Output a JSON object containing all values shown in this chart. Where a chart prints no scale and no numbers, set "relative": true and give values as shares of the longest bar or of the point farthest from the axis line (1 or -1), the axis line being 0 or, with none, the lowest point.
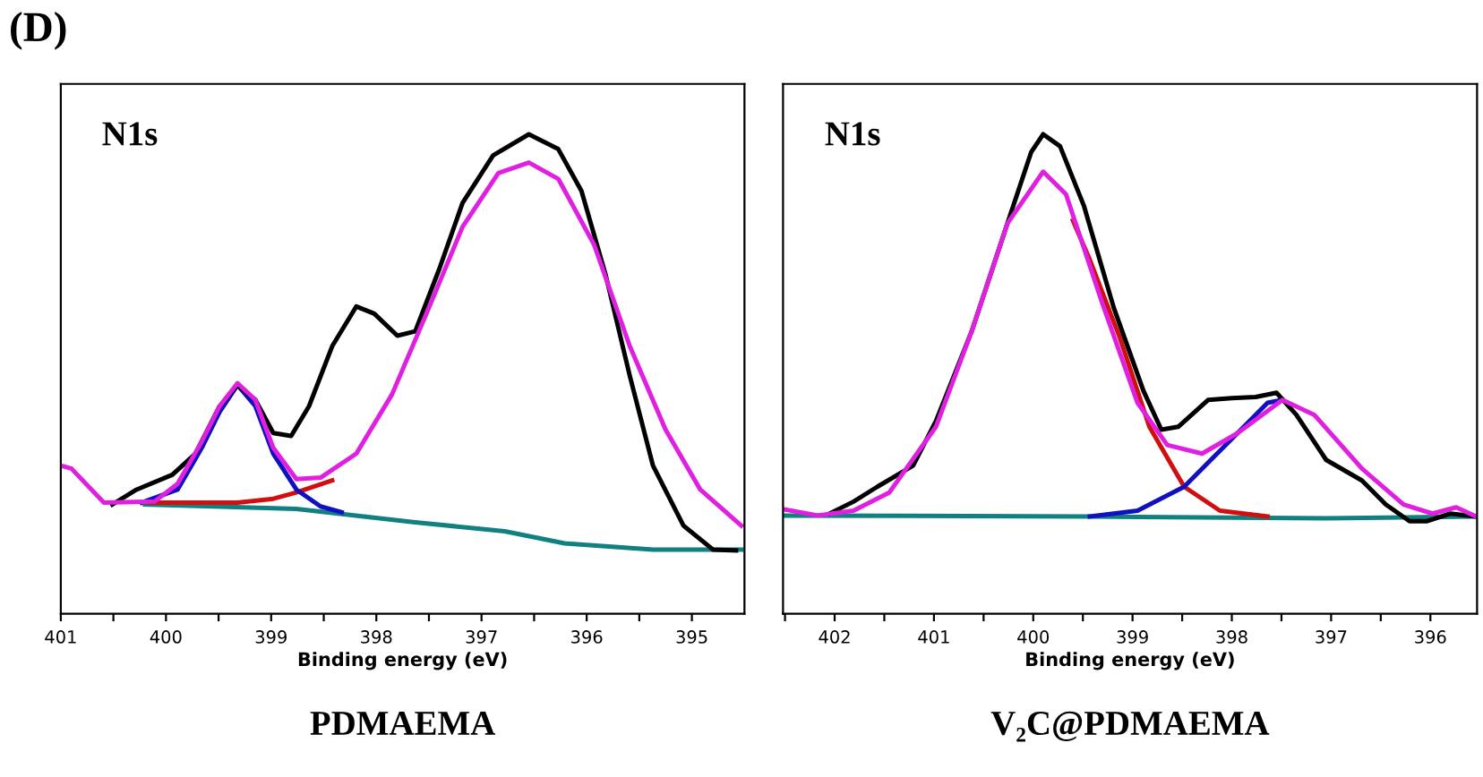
{
  "chart_data": [
    {
      "type": "line",
      "title": "PDMAEMA",
      "xlabel": "Binding energy (eV)",
      "relative": true,
      "annotations": [
        "(D)",
        "N1s"
      ],
      "grid": false,
      "legend": false,
      "marker": "none",
      "line_style": "solid",
      "tick_labels": "x",
      "xlim": [
        401,
        394.5
      ],
      "xticks": [
        401,
        {
          "value": 400.5,
          "label": null
        },
        400,
        {
          "value": 399.5,
          "label": null
        },
        399,
        {
          "value": 398.5,
          "label": null
        },
        398,
        {
          "value": 397.5,
          "label": null
        },
        397,
        {
          "value": 396.5,
          "label": null
        },
        396,
        {
          "value": 395.5,
          "label": null
        },
        395
      ],
      "series": [
        {
          "color": "#108080",
          "x": [
            400.2,
            398.76,
            397.63,
            396.78,
            396.21,
            395.37,
            394.53
          ],
          "values": [
            0.228,
            0.219,
            0.191,
            0.172,
            0.147,
            0.134,
            0.134
          ]
        },
        {
          "color": "#d01010",
          "x": [
            400.17,
            399.32,
            398.98,
            398.76,
            398.42
          ],
          "values": [
            0.232,
            0.232,
            0.24,
            0.253,
            0.278
          ]
        },
        {
          "color": "#1010c0",
          "x": [
            400.23,
            399.89,
            399.66,
            399.49,
            399.32,
            399.15,
            398.98,
            398.76,
            398.53,
            398.33
          ],
          "values": [
            0.232,
            0.259,
            0.346,
            0.421,
            0.477,
            0.433,
            0.334,
            0.259,
            0.224,
            0.212
          ]
        },
        {
          "color": "#000000",
          "x": [
            400.51,
            400.28,
            399.94,
            399.72,
            399.49,
            399.32,
            399.15,
            398.98,
            398.81,
            398.64,
            398.42,
            398.19,
            398.02,
            397.8,
            397.63,
            397.4,
            397.18,
            396.89,
            396.55,
            396.27,
            396.05,
            395.82,
            395.59,
            395.37,
            395.08,
            394.8,
            394.58
          ],
          "values": [
            0.228,
            0.259,
            0.29,
            0.334,
            0.433,
            0.477,
            0.446,
            0.377,
            0.371,
            0.433,
            0.558,
            0.641,
            0.626,
            0.58,
            0.589,
            0.72,
            0.857,
            0.956,
            1.0,
            0.969,
            0.882,
            0.707,
            0.496,
            0.309,
            0.184,
            0.134,
            0.132
          ]
        },
        {
          "color": "#e020e0",
          "x": [
            401.0,
            400.9,
            400.59,
            400.11,
            399.89,
            399.66,
            399.49,
            399.32,
            399.15,
            398.98,
            398.76,
            398.53,
            398.19,
            397.85,
            397.51,
            397.18,
            396.84,
            396.55,
            396.27,
            395.93,
            395.59,
            395.25,
            394.92,
            394.53
          ],
          "values": [
            0.309,
            0.303,
            0.232,
            0.234,
            0.271,
            0.359,
            0.433,
            0.481,
            0.446,
            0.346,
            0.281,
            0.284,
            0.334,
            0.458,
            0.633,
            0.807,
            0.919,
            0.941,
            0.907,
            0.77,
            0.558,
            0.384,
            0.259,
            0.184
          ]
        }
      ]
    },
    {
      "type": "line",
      "title": "V₂C@PDMAEMA",
      "xlabel": "Binding energy (eV)",
      "relative": true,
      "annotations": [
        "N1s"
      ],
      "grid": false,
      "legend": false,
      "marker": "none",
      "line_style": "solid",
      "tick_labels": "x",
      "xlim": [
        402.52,
        395.53
      ],
      "xticks": [
        {
          "value": 402.5,
          "label": null
        },
        402,
        {
          "value": 401.5,
          "label": null
        },
        401,
        {
          "value": 400.5,
          "label": null
        },
        400,
        {
          "value": 399.5,
          "label": null
        },
        399,
        {
          "value": 398.5,
          "label": null
        },
        398,
        {
          "value": 397.5,
          "label": null
        },
        397,
        {
          "value": 396.5,
          "label": null
        },
        396
      ],
      "series": [
        {
          "color": "#108080",
          "x": [
            402.51,
            399.43,
            397.05,
            395.54
          ],
          "values": [
            0.205,
            0.203,
            0.199,
            0.203
          ]
        },
        {
          "color": "#d01010",
          "x": [
            399.6,
            399.43,
            399.13,
            398.83,
            398.48,
            398.12,
            397.64
          ],
          "values": [
            0.82,
            0.738,
            0.577,
            0.39,
            0.265,
            0.215,
            0.203
          ]
        },
        {
          "color": "#1010c0",
          "x": [
            399.43,
            398.95,
            398.48,
            398.0,
            397.64,
            397.49
          ],
          "values": [
            0.203,
            0.215,
            0.265,
            0.365,
            0.44,
            0.446
          ]
        },
        {
          "color": "#000000",
          "x": [
            402.05,
            401.81,
            401.57,
            401.21,
            400.98,
            400.62,
            400.26,
            400.02,
            399.9,
            399.73,
            399.49,
            399.19,
            398.89,
            398.71,
            398.54,
            398.24,
            398.0,
            397.76,
            397.55,
            397.35,
            397.05,
            396.69,
            396.45,
            396.21,
            396.04,
            395.8,
            395.54
          ],
          "values": [
            0.209,
            0.234,
            0.265,
            0.309,
            0.402,
            0.589,
            0.814,
            0.963,
            1.0,
            0.975,
            0.851,
            0.639,
            0.465,
            0.384,
            0.39,
            0.446,
            0.45,
            0.452,
            0.461,
            0.415,
            0.321,
            0.278,
            0.228,
            0.193,
            0.193,
            0.209,
            0.203
          ]
        },
        {
          "color": "#e020e0",
          "x": [
            402.51,
            402.17,
            401.81,
            401.45,
            400.98,
            400.62,
            400.26,
            399.9,
            399.67,
            399.31,
            398.95,
            398.65,
            398.3,
            397.94,
            397.49,
            397.17,
            396.69,
            396.27,
            395.98,
            395.74,
            395.54
          ],
          "values": [
            0.218,
            0.205,
            0.215,
            0.253,
            0.39,
            0.589,
            0.814,
            0.922,
            0.875,
            0.651,
            0.44,
            0.352,
            0.334,
            0.377,
            0.446,
            0.415,
            0.303,
            0.228,
            0.209,
            0.222,
            0.203
          ]
        }
      ]
    }
  ]
}
